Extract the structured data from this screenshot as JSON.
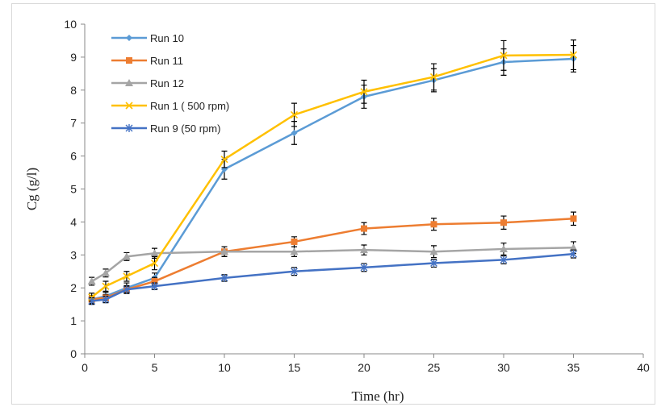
{
  "chart_data": {
    "type": "line",
    "title": "",
    "xlabel": "Time (hr)",
    "ylabel": "Cg (g/l)",
    "xlim": [
      0,
      40
    ],
    "ylim": [
      0,
      10
    ],
    "xticks": [
      0,
      5,
      10,
      15,
      20,
      25,
      30,
      35,
      40
    ],
    "yticks": [
      0,
      1,
      2,
      3,
      4,
      5,
      6,
      7,
      8,
      9,
      10
    ],
    "grid": false,
    "legend_position": "top-left",
    "x": [
      0.5,
      1.5,
      3,
      5,
      10,
      15,
      20,
      25,
      30,
      35
    ],
    "series": [
      {
        "name": "Run 10",
        "color": "#5b9bd5",
        "marker": "diamond",
        "values": [
          1.65,
          1.75,
          2.0,
          2.3,
          5.6,
          6.7,
          7.8,
          8.3,
          8.85,
          8.95
        ],
        "errors": [
          0.12,
          0.12,
          0.15,
          0.15,
          0.3,
          0.35,
          0.35,
          0.35,
          0.4,
          0.4
        ]
      },
      {
        "name": "Run 11",
        "color": "#ed7d31",
        "marker": "square",
        "values": [
          1.65,
          1.7,
          1.95,
          2.2,
          3.1,
          3.4,
          3.8,
          3.93,
          3.98,
          4.1
        ],
        "errors": [
          0.12,
          0.1,
          0.12,
          0.12,
          0.15,
          0.15,
          0.18,
          0.18,
          0.2,
          0.2
        ]
      },
      {
        "name": "Run 12",
        "color": "#a5a5a5",
        "marker": "triangle",
        "values": [
          2.2,
          2.45,
          2.95,
          3.05,
          3.1,
          3.1,
          3.15,
          3.1,
          3.18,
          3.22
        ],
        "errors": [
          0.12,
          0.12,
          0.12,
          0.15,
          0.15,
          0.15,
          0.15,
          0.18,
          0.18,
          0.18
        ]
      },
      {
        "name": "Run 1 ( 500 rpm)",
        "color": "#ffc000",
        "marker": "x",
        "values": [
          1.72,
          2.05,
          2.35,
          2.75,
          5.9,
          7.25,
          7.95,
          8.4,
          9.05,
          9.07
        ],
        "errors": [
          0.12,
          0.15,
          0.15,
          0.2,
          0.25,
          0.35,
          0.35,
          0.4,
          0.45,
          0.45
        ]
      },
      {
        "name": "Run 9 (50 rpm)",
        "color": "#4472c4",
        "marker": "asterisk",
        "values": [
          1.6,
          1.65,
          1.95,
          2.05,
          2.3,
          2.5,
          2.62,
          2.75,
          2.85,
          3.03
        ],
        "errors": [
          0.1,
          0.1,
          0.1,
          0.1,
          0.1,
          0.12,
          0.12,
          0.12,
          0.12,
          0.12
        ]
      }
    ]
  }
}
